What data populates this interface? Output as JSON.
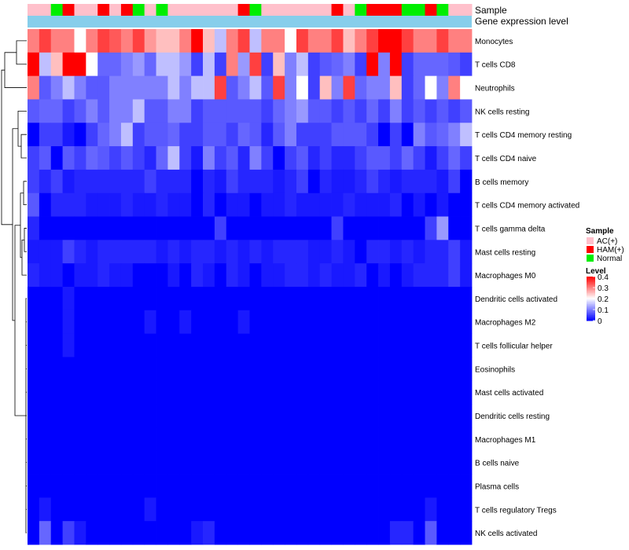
{
  "chart_data": {
    "type": "heatmap",
    "title": "",
    "annotation_rows": [
      "Sample",
      "Gene expression level"
    ],
    "row_labels": [
      "Monocytes",
      "T cells CD8",
      "Neutrophils",
      "NK cells resting",
      "T cells CD4 memory resting",
      "T cells CD4 naive",
      "B cells memory",
      "T cells CD4 memory activated",
      "T cells gamma delta",
      "Mast cells resting",
      "Macrophages M0",
      "Dendritic cells activated",
      "Macrophages M2",
      "T cells follicular helper",
      "Eosinophils",
      "Mast cells activated",
      "Dendritic cells resting",
      "Macrophages M1",
      "B cells naive",
      "Plasma cells",
      "T cells regulatory  Tregs",
      "NK cells activated"
    ],
    "sample_groups": [
      "AC",
      "AC",
      "N",
      "H",
      "AC",
      "AC",
      "H",
      "AC",
      "H",
      "N",
      "AC",
      "N",
      "AC",
      "AC",
      "AC",
      "AC",
      "AC",
      "AC",
      "H",
      "N",
      "AC",
      "AC",
      "AC",
      "AC",
      "AC",
      "AC",
      "H",
      "AC",
      "N",
      "H",
      "H",
      "H",
      "N",
      "N",
      "H",
      "N",
      "AC",
      "AC"
    ],
    "values": [
      [
        0.3,
        0.35,
        0.3,
        0.3,
        0.2,
        0.3,
        0.35,
        0.33,
        0.3,
        0.35,
        0.28,
        0.25,
        0.25,
        0.3,
        0.4,
        0.25,
        0.15,
        0.3,
        0.35,
        0.15,
        0.3,
        0.3,
        0.2,
        0.35,
        0.3,
        0.3,
        0.35,
        0.25,
        0.3,
        0.35,
        0.4,
        0.4,
        0.35,
        0.3,
        0.3,
        0.35,
        0.3,
        0.3
      ],
      [
        0.4,
        0.15,
        0.25,
        0.4,
        0.4,
        0.2,
        0.08,
        0.08,
        0.1,
        0.12,
        0.08,
        0.15,
        0.15,
        0.12,
        0.05,
        0.15,
        0.05,
        0.3,
        0.12,
        0.35,
        0.05,
        0.25,
        0.1,
        0.15,
        0.05,
        0.07,
        0.08,
        0.1,
        0.05,
        0.4,
        0.1,
        0.4,
        0.05,
        0.08,
        0.08,
        0.08,
        0.07,
        0.05
      ],
      [
        0.3,
        0.07,
        0.1,
        0.15,
        0.1,
        0.07,
        0.07,
        0.1,
        0.1,
        0.1,
        0.1,
        0.1,
        0.15,
        0.1,
        0.15,
        0.15,
        0.35,
        0.07,
        0.1,
        0.15,
        0.07,
        0.35,
        0.1,
        0.2,
        0.05,
        0.25,
        0.1,
        0.35,
        0.08,
        0.1,
        0.1,
        0.25,
        0.05,
        0.08,
        0.2,
        0.1,
        0.3,
        0.2
      ],
      [
        0.07,
        0.08,
        0.08,
        0.05,
        0.07,
        0.1,
        0.07,
        0.1,
        0.1,
        0.15,
        0.07,
        0.07,
        0.1,
        0.1,
        0.05,
        0.07,
        0.07,
        0.07,
        0.07,
        0.07,
        0.05,
        0.08,
        0.1,
        0.12,
        0.07,
        0.07,
        0.05,
        0.07,
        0.05,
        0.08,
        0.05,
        0.1,
        0.05,
        0.07,
        0.05,
        0.07,
        0.05,
        0.07
      ],
      [
        0.0,
        0.05,
        0.05,
        0.02,
        0.0,
        0.05,
        0.08,
        0.1,
        0.15,
        0.05,
        0.07,
        0.07,
        0.08,
        0.05,
        0.05,
        0.07,
        0.07,
        0.05,
        0.08,
        0.07,
        0.03,
        0.07,
        0.1,
        0.05,
        0.05,
        0.05,
        0.07,
        0.07,
        0.07,
        0.05,
        0.0,
        0.05,
        0.0,
        0.1,
        0.07,
        0.08,
        0.1,
        0.15
      ],
      [
        0.05,
        0.07,
        0.0,
        0.07,
        0.05,
        0.08,
        0.07,
        0.05,
        0.07,
        0.05,
        0.03,
        0.08,
        0.15,
        0.05,
        0.02,
        0.1,
        0.05,
        0.07,
        0.03,
        0.1,
        0.05,
        0.0,
        0.05,
        0.07,
        0.03,
        0.05,
        0.03,
        0.03,
        0.05,
        0.07,
        0.07,
        0.05,
        0.08,
        0.05,
        0.02,
        0.05,
        0.08,
        0.05
      ],
      [
        0.05,
        0.03,
        0.05,
        0.02,
        0.03,
        0.03,
        0.03,
        0.03,
        0.03,
        0.03,
        0.05,
        0.03,
        0.03,
        0.03,
        0.0,
        0.03,
        0.02,
        0.05,
        0.03,
        0.03,
        0.03,
        0.02,
        0.03,
        0.05,
        0.0,
        0.03,
        0.02,
        0.02,
        0.03,
        0.05,
        0.03,
        0.02,
        0.03,
        0.03,
        0.03,
        0.02,
        0.05,
        0.0
      ],
      [
        0.07,
        0.0,
        0.03,
        0.03,
        0.03,
        0.02,
        0.02,
        0.02,
        0.03,
        0.02,
        0.02,
        0.03,
        0.02,
        0.02,
        0.0,
        0.03,
        0.0,
        0.02,
        0.02,
        0.0,
        0.02,
        0.02,
        0.03,
        0.02,
        0.02,
        0.02,
        0.02,
        0.03,
        0.02,
        0.02,
        0.02,
        0.03,
        0.0,
        0.02,
        0.0,
        0.02,
        0.0,
        0.0
      ],
      [
        0.03,
        0.0,
        0.0,
        0.0,
        0.0,
        0.0,
        0.0,
        0.0,
        0.0,
        0.0,
        0.0,
        0.0,
        0.0,
        0.0,
        0.0,
        0.0,
        0.05,
        0.0,
        0.0,
        0.0,
        0.0,
        0.0,
        0.0,
        0.0,
        0.0,
        0.0,
        0.05,
        0.0,
        0.0,
        0.0,
        0.0,
        0.0,
        0.0,
        0.0,
        0.05,
        0.12,
        0.0,
        0.0
      ],
      [
        0.02,
        0.02,
        0.02,
        0.05,
        0.03,
        0.02,
        0.03,
        0.03,
        0.03,
        0.03,
        0.03,
        0.02,
        0.03,
        0.02,
        0.03,
        0.03,
        0.02,
        0.03,
        0.02,
        0.03,
        0.02,
        0.03,
        0.03,
        0.03,
        0.02,
        0.02,
        0.03,
        0.02,
        0.0,
        0.03,
        0.03,
        0.02,
        0.03,
        0.02,
        0.03,
        0.03,
        0.05,
        0.02
      ],
      [
        0.03,
        0.02,
        0.02,
        0.0,
        0.02,
        0.02,
        0.03,
        0.02,
        0.02,
        0.0,
        0.0,
        0.0,
        0.02,
        0.0,
        0.03,
        0.02,
        0.0,
        0.03,
        0.02,
        0.0,
        0.02,
        0.02,
        0.03,
        0.03,
        0.02,
        0.03,
        0.02,
        0.02,
        0.03,
        0.0,
        0.02,
        0.0,
        0.02,
        0.03,
        0.03,
        0.03,
        0.05,
        0.02
      ],
      [
        0.0,
        0.0,
        0.0,
        0.02,
        0.0,
        0.0,
        0.0,
        0.0,
        0.0,
        0.0,
        0.0,
        0.0,
        0.0,
        0.0,
        0.0,
        0.0,
        0.0,
        0.0,
        0.0,
        0.0,
        0.0,
        0.0,
        0.0,
        0.0,
        0.0,
        0.0,
        0.0,
        0.0,
        0.0,
        0.0,
        0.0,
        0.0,
        0.0,
        0.0,
        0.0,
        0.0,
        0.0,
        0.0
      ],
      [
        0.0,
        0.0,
        0.0,
        0.02,
        0.0,
        0.0,
        0.0,
        0.0,
        0.0,
        0.0,
        0.02,
        0.0,
        0.0,
        0.02,
        0.0,
        0.0,
        0.0,
        0.0,
        0.02,
        0.0,
        0.0,
        0.0,
        0.0,
        0.0,
        0.0,
        0.0,
        0.0,
        0.0,
        0.0,
        0.0,
        0.0,
        0.0,
        0.0,
        0.0,
        0.0,
        0.0,
        0.0,
        0.0
      ],
      [
        0.0,
        0.0,
        0.0,
        0.02,
        0.0,
        0.0,
        0.0,
        0.0,
        0.0,
        0.0,
        0.0,
        0.0,
        0.0,
        0.0,
        0.0,
        0.0,
        0.0,
        0.0,
        0.0,
        0.0,
        0.0,
        0.0,
        0.0,
        0.0,
        0.0,
        0.0,
        0.0,
        0.0,
        0.0,
        0.0,
        0.0,
        0.0,
        0.0,
        0.0,
        0.0,
        0.0,
        0.0,
        0.0
      ],
      [
        0.0,
        0.0,
        0.0,
        0.0,
        0.0,
        0.0,
        0.0,
        0.0,
        0.0,
        0.0,
        0.0,
        0.0,
        0.0,
        0.0,
        0.0,
        0.0,
        0.0,
        0.0,
        0.0,
        0.0,
        0.0,
        0.0,
        0.0,
        0.0,
        0.0,
        0.0,
        0.0,
        0.0,
        0.0,
        0.0,
        0.0,
        0.0,
        0.0,
        0.0,
        0.0,
        0.0,
        0.0,
        0.0
      ],
      [
        0.0,
        0.0,
        0.0,
        0.0,
        0.0,
        0.0,
        0.0,
        0.0,
        0.0,
        0.0,
        0.0,
        0.0,
        0.0,
        0.0,
        0.0,
        0.0,
        0.0,
        0.0,
        0.0,
        0.0,
        0.0,
        0.0,
        0.0,
        0.0,
        0.0,
        0.0,
        0.0,
        0.0,
        0.0,
        0.0,
        0.0,
        0.0,
        0.0,
        0.0,
        0.0,
        0.0,
        0.0,
        0.0
      ],
      [
        0.0,
        0.0,
        0.0,
        0.0,
        0.0,
        0.0,
        0.0,
        0.0,
        0.0,
        0.0,
        0.0,
        0.0,
        0.0,
        0.0,
        0.0,
        0.0,
        0.0,
        0.0,
        0.0,
        0.0,
        0.0,
        0.0,
        0.0,
        0.0,
        0.0,
        0.0,
        0.0,
        0.0,
        0.0,
        0.0,
        0.0,
        0.0,
        0.0,
        0.0,
        0.0,
        0.0,
        0.0,
        0.0
      ],
      [
        0.0,
        0.0,
        0.0,
        0.0,
        0.0,
        0.0,
        0.0,
        0.0,
        0.0,
        0.0,
        0.0,
        0.0,
        0.0,
        0.0,
        0.0,
        0.0,
        0.0,
        0.0,
        0.0,
        0.0,
        0.0,
        0.0,
        0.0,
        0.0,
        0.0,
        0.0,
        0.0,
        0.0,
        0.0,
        0.0,
        0.0,
        0.0,
        0.0,
        0.0,
        0.0,
        0.0,
        0.0,
        0.0
      ],
      [
        0.0,
        0.0,
        0.0,
        0.0,
        0.0,
        0.0,
        0.0,
        0.0,
        0.0,
        0.0,
        0.0,
        0.0,
        0.0,
        0.0,
        0.0,
        0.0,
        0.0,
        0.0,
        0.0,
        0.0,
        0.0,
        0.0,
        0.0,
        0.0,
        0.0,
        0.0,
        0.0,
        0.0,
        0.0,
        0.0,
        0.0,
        0.0,
        0.0,
        0.0,
        0.0,
        0.0,
        0.0,
        0.0
      ],
      [
        0.0,
        0.0,
        0.0,
        0.0,
        0.0,
        0.0,
        0.0,
        0.0,
        0.0,
        0.0,
        0.0,
        0.0,
        0.0,
        0.0,
        0.0,
        0.0,
        0.0,
        0.0,
        0.0,
        0.0,
        0.0,
        0.0,
        0.0,
        0.0,
        0.0,
        0.0,
        0.0,
        0.0,
        0.0,
        0.0,
        0.0,
        0.0,
        0.0,
        0.0,
        0.0,
        0.0,
        0.0,
        0.0
      ],
      [
        0.0,
        0.02,
        0.0,
        0.0,
        0.0,
        0.0,
        0.0,
        0.0,
        0.0,
        0.0,
        0.02,
        0.0,
        0.0,
        0.0,
        0.0,
        0.0,
        0.0,
        0.0,
        0.0,
        0.0,
        0.0,
        0.0,
        0.0,
        0.0,
        0.0,
        0.0,
        0.0,
        0.0,
        0.0,
        0.0,
        0.0,
        0.0,
        0.0,
        0.0,
        0.02,
        0.0,
        0.0,
        0.0
      ],
      [
        0.0,
        0.08,
        0.0,
        0.05,
        0.02,
        0.0,
        0.0,
        0.0,
        0.0,
        0.0,
        0.0,
        0.0,
        0.0,
        0.0,
        0.02,
        0.03,
        0.0,
        0.0,
        0.0,
        0.0,
        0.0,
        0.0,
        0.0,
        0.0,
        0.0,
        0.0,
        0.0,
        0.0,
        0.0,
        0.0,
        0.0,
        0.03,
        0.03,
        0.0,
        0.07,
        0.0,
        0.0,
        0.0
      ]
    ],
    "color_scale": {
      "min": 0,
      "max": 0.4,
      "colors": [
        "#0000ff",
        "#ffffff",
        "#ff0000"
      ]
    },
    "gene_expression_bar_color": "#87ceeb",
    "legend_sample": {
      "title": "Sample",
      "entries": [
        {
          "key": "AC",
          "label": "AC(+)",
          "color": "#ffc0cb"
        },
        {
          "key": "H",
          "label": "HAM(+)",
          "color": "#ff0000"
        },
        {
          "key": "N",
          "label": "Normal",
          "color": "#00ee00"
        }
      ]
    },
    "legend_level": {
      "title": "Level",
      "ticks": [
        "0.4",
        "0.3",
        "0.2",
        "0.1",
        "0"
      ],
      "tick_values": [
        0.4,
        0.3,
        0.2,
        0.1,
        0
      ]
    }
  }
}
